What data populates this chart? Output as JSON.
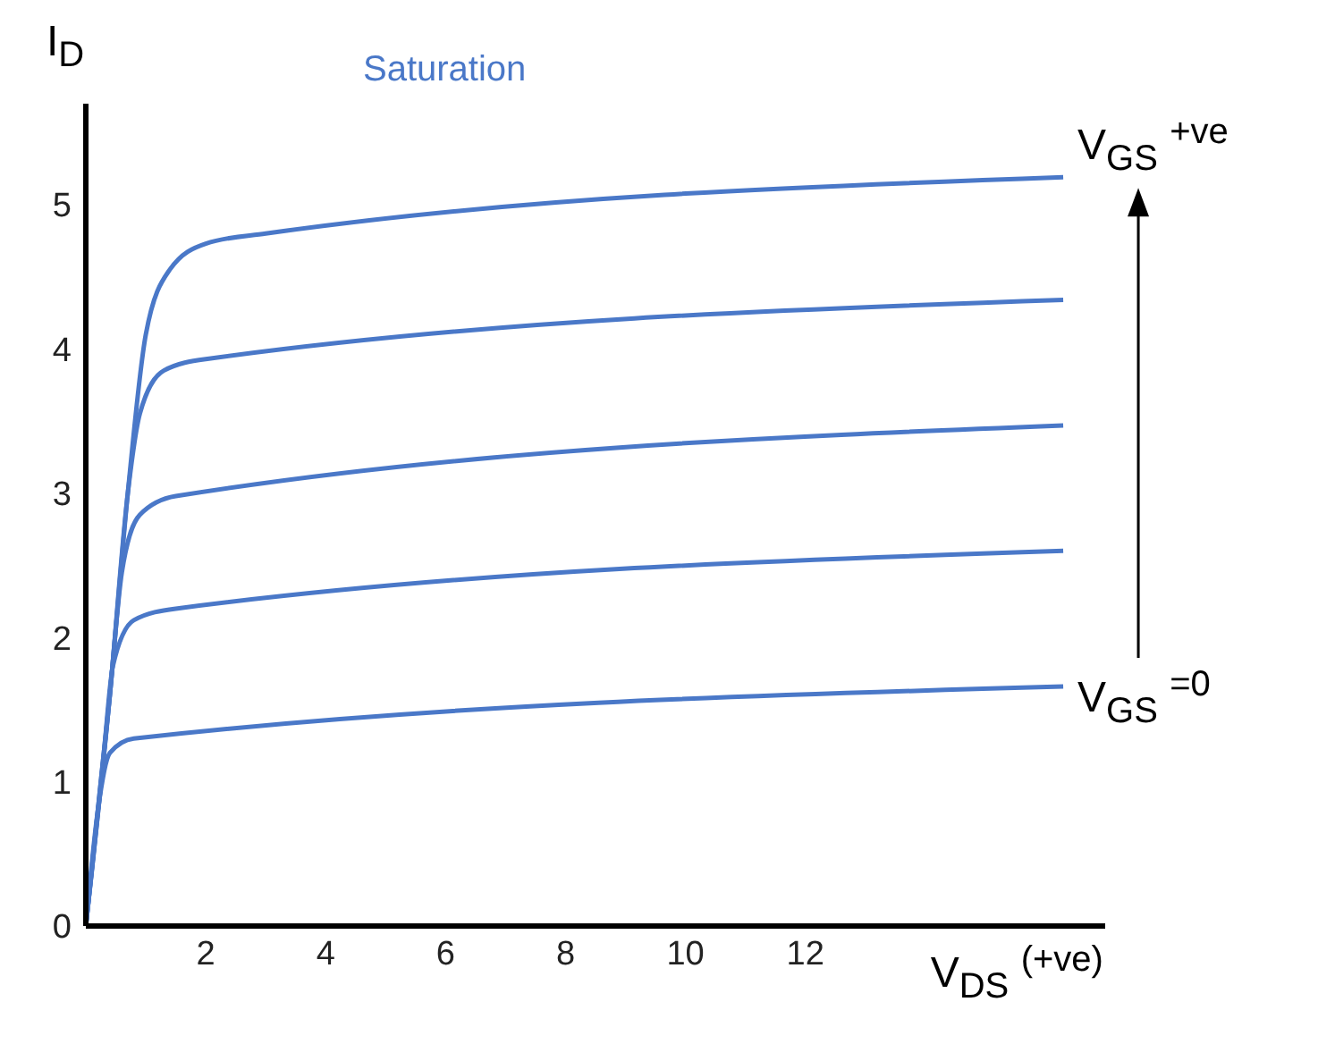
{
  "chart_data": {
    "type": "line",
    "xlabel": "V$_{DS}$ $^{(+ve)}$",
    "ylabel": "I$_{D}$",
    "xlim": [
      0,
      17
    ],
    "ylim": [
      0,
      5.7
    ],
    "xticks": [
      2,
      4,
      6,
      8,
      10,
      12
    ],
    "yticks": [
      0,
      1,
      2,
      3,
      4,
      5
    ],
    "grid": false,
    "legend": false,
    "marker": "none",
    "line_style": "solid",
    "series": [
      {
        "color": "#4a78c8",
        "x": [
          0,
          0.4,
          0.7,
          1.0,
          1.4,
          2,
          3,
          16.3
        ],
        "values": [
          0,
          1.6,
          3.0,
          4.1,
          4.55,
          4.73,
          4.8,
          5.19
        ]
      },
      {
        "color": "#4a78c8",
        "x": [
          0,
          0.4,
          0.7,
          0.9,
          1.3,
          2,
          16.3
        ],
        "values": [
          0,
          1.6,
          3.0,
          3.55,
          3.85,
          3.93,
          4.34
        ]
      },
      {
        "color": "#4a78c8",
        "x": [
          0,
          0.4,
          0.6,
          0.9,
          1.5,
          16.3
        ],
        "values": [
          0,
          1.6,
          2.45,
          2.85,
          2.98,
          3.47
        ]
      },
      {
        "color": "#4a78c8",
        "x": [
          0,
          0.3,
          0.45,
          0.8,
          1.5,
          16.3
        ],
        "values": [
          0,
          1.2,
          1.8,
          2.12,
          2.2,
          2.6
        ]
      },
      {
        "color": "#4a78c8",
        "x": [
          0,
          0.2,
          0.4,
          0.8,
          16.3
        ],
        "values": [
          0,
          0.8,
          1.2,
          1.3,
          1.66
        ]
      }
    ],
    "annotations": [
      "Saturation",
      {
        "text": "V$_{GS}$ $^{+ve}$",
        "x": 16.3,
        "y": 5.19
      },
      {
        "text": "V$_{GS}$ $^{=0}$",
        "x": 16.3,
        "y": 1.66
      }
    ]
  }
}
